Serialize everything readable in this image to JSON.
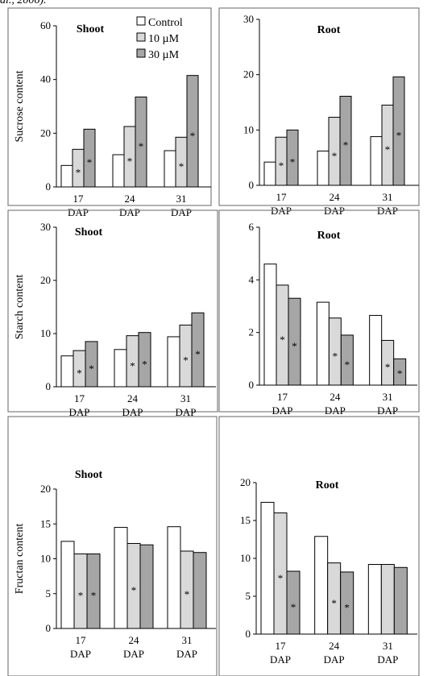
{
  "caption_fragment": "al., 2006).",
  "legend": [
    {
      "label": "Control",
      "fill": "#ffffff"
    },
    {
      "label": "10 µM",
      "fill": "#d9d9d9"
    },
    {
      "label": "30 µM",
      "fill": "#a6a6a6"
    }
  ],
  "colors": {
    "control": "#ffffff",
    "low": "#d9d9d9",
    "high": "#a6a6a6",
    "stroke": "#000000",
    "panel_border": "#7f7f7f"
  },
  "chart_data": [
    {
      "type": "bar",
      "title": "Shoot",
      "ylabel": "Sucrose content",
      "categories": [
        "17 DAP",
        "24 DAP",
        "31 DAP"
      ],
      "ylim": [
        0,
        60
      ],
      "yticks": [
        0,
        20,
        40,
        60
      ],
      "series": [
        {
          "name": "Control",
          "values": [
            8,
            12,
            13.5
          ]
        },
        {
          "name": "10 µM",
          "values": [
            14,
            22.5,
            18.5
          ]
        },
        {
          "name": "30 µM",
          "values": [
            21.5,
            33.5,
            41.5
          ]
        }
      ],
      "significance": [
        [
          false,
          true,
          true
        ],
        [
          false,
          true,
          true
        ],
        [
          false,
          true,
          true
        ]
      ],
      "legend": "top-right"
    },
    {
      "type": "bar",
      "title": "Root",
      "ylabel": "",
      "categories": [
        "17 DAP",
        "24 DAP",
        "31 DAP"
      ],
      "ylim": [
        0,
        30
      ],
      "yticks": [
        0,
        10,
        20,
        30
      ],
      "series": [
        {
          "name": "Control",
          "values": [
            4.2,
            6.2,
            8.8
          ]
        },
        {
          "name": "10 µM",
          "values": [
            8.7,
            12.3,
            14.5
          ]
        },
        {
          "name": "30 µM",
          "values": [
            10,
            16.1,
            19.6
          ]
        }
      ],
      "significance": [
        [
          false,
          true,
          true
        ],
        [
          false,
          true,
          true
        ],
        [
          false,
          true,
          true
        ]
      ]
    },
    {
      "type": "bar",
      "title": "Shoot",
      "ylabel": "Starch content",
      "categories": [
        "17 DAP",
        "24 DAP",
        "31 DAP"
      ],
      "ylim": [
        0,
        30
      ],
      "yticks": [
        0,
        10,
        20,
        30
      ],
      "series": [
        {
          "name": "Control",
          "values": [
            5.8,
            7,
            9.4
          ]
        },
        {
          "name": "10 µM",
          "values": [
            6.8,
            9.6,
            11.6
          ]
        },
        {
          "name": "30 µM",
          "values": [
            8.5,
            10.2,
            13.9
          ]
        }
      ],
      "significance": [
        [
          false,
          true,
          true
        ],
        [
          false,
          true,
          true
        ],
        [
          false,
          true,
          true
        ]
      ]
    },
    {
      "type": "bar",
      "title": "Root",
      "ylabel": "",
      "categories": [
        "17 DAP",
        "24 DAP",
        "31 DAP"
      ],
      "ylim": [
        0,
        6
      ],
      "yticks": [
        0,
        2,
        4,
        6
      ],
      "series": [
        {
          "name": "Control",
          "values": [
            4.6,
            3.15,
            2.65
          ]
        },
        {
          "name": "10 µM",
          "values": [
            3.8,
            2.55,
            1.7
          ]
        },
        {
          "name": "30 µM",
          "values": [
            3.3,
            1.9,
            1
          ]
        }
      ],
      "significance": [
        [
          false,
          true,
          true
        ],
        [
          false,
          true,
          true
        ],
        [
          false,
          true,
          true
        ]
      ]
    },
    {
      "type": "bar",
      "title": "Shoot",
      "ylabel": "Fructan content",
      "categories": [
        "17 DAP",
        "24 DAP",
        "31 DAP"
      ],
      "ylim": [
        0,
        20
      ],
      "yticks": [
        0,
        5,
        10,
        15,
        20
      ],
      "series": [
        {
          "name": "Control",
          "values": [
            12.5,
            14.5,
            14.6
          ]
        },
        {
          "name": "10 µM",
          "values": [
            10.7,
            12.2,
            11.1
          ]
        },
        {
          "name": "30 µM",
          "values": [
            10.7,
            12,
            10.9
          ]
        }
      ],
      "significance": [
        [
          false,
          true,
          true
        ],
        [
          false,
          true,
          false
        ],
        [
          false,
          true,
          false
        ]
      ]
    },
    {
      "type": "bar",
      "title": "Root",
      "ylabel": "",
      "categories": [
        "17 DAP",
        "24 DAP",
        "31 DAP"
      ],
      "ylim": [
        0,
        20
      ],
      "yticks": [
        0,
        5,
        10,
        15,
        20
      ],
      "series": [
        {
          "name": "Control",
          "values": [
            17.4,
            12.9,
            9.2
          ]
        },
        {
          "name": "10 µM",
          "values": [
            16,
            9.4,
            9.2
          ]
        },
        {
          "name": "30 µM",
          "values": [
            8.3,
            8.2,
            8.8
          ]
        }
      ],
      "significance": [
        [
          false,
          true,
          true
        ],
        [
          false,
          true,
          true
        ],
        [
          false,
          false,
          false
        ]
      ]
    }
  ]
}
